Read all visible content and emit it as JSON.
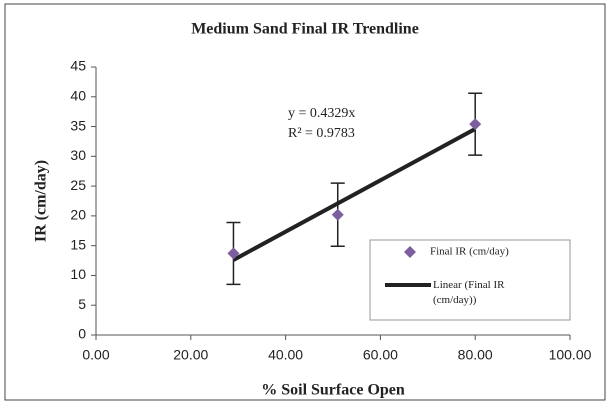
{
  "chart_data": {
    "type": "scatter",
    "title": "Medium Sand Final IR Trendline",
    "x_label": "% Soil Surface Open",
    "y_label": "IR (cm/day)",
    "annotations": [
      "y = 0.4329x",
      "R² = 0.9783"
    ],
    "xlim": [
      0,
      100
    ],
    "ylim": [
      0,
      45
    ],
    "xticks": [
      {
        "value": 0,
        "label": "0.00"
      },
      {
        "value": 20,
        "label": "20.00"
      },
      {
        "value": 40,
        "label": "40.00"
      },
      {
        "value": 60,
        "label": "60.00"
      },
      {
        "value": 80,
        "label": "80.00"
      },
      {
        "value": 100,
        "label": "100.00"
      }
    ],
    "yticks": [
      0,
      5,
      10,
      15,
      20,
      25,
      30,
      35,
      40,
      45
    ],
    "grid": false,
    "series": [
      {
        "name": "Final IR (cm/day)",
        "color": "#7d5f9f",
        "x": [
          29,
          51,
          80
        ],
        "values": [
          13.7,
          20.2,
          35.4
        ],
        "errors": [
          5.2,
          5.3,
          5.2
        ]
      },
      {
        "name": "Linear (Final IR (cm/day))",
        "color": "#222222",
        "x": [
          29,
          80
        ],
        "values": [
          12.6,
          34.6
        ]
      }
    ]
  }
}
